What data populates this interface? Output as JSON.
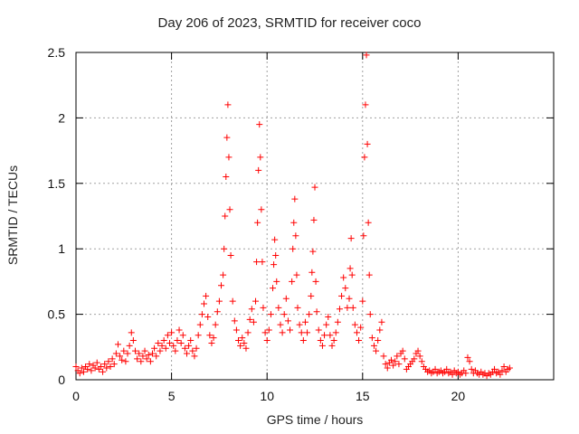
{
  "chart_data": {
    "type": "scatter",
    "title": "Day 206 of 2023, SRMTID for receiver coco",
    "xlabel": "GPS time / hours",
    "ylabel": "SRMTID / TECUs",
    "xlim": [
      0,
      25
    ],
    "ylim": [
      0,
      2.5
    ],
    "xticks": [
      0,
      5,
      10,
      15,
      20
    ],
    "yticks": [
      0,
      0.5,
      1,
      1.5,
      2,
      2.5
    ],
    "xtick_labels": [
      "0",
      "5",
      "10",
      "15",
      "20"
    ],
    "ytick_labels": [
      "0",
      "0.5",
      "1",
      "1.5",
      "2",
      "2.5"
    ],
    "grid": true,
    "marker": "+",
    "color": "#ff0000",
    "series": [
      {
        "name": "coco",
        "points": [
          [
            0.0,
            0.1
          ],
          [
            0.1,
            0.07
          ],
          [
            0.2,
            0.05
          ],
          [
            0.3,
            0.09
          ],
          [
            0.4,
            0.06
          ],
          [
            0.5,
            0.1
          ],
          [
            0.6,
            0.08
          ],
          [
            0.7,
            0.12
          ],
          [
            0.8,
            0.07
          ],
          [
            0.9,
            0.11
          ],
          [
            1.0,
            0.09
          ],
          [
            1.1,
            0.13
          ],
          [
            1.2,
            0.08
          ],
          [
            1.3,
            0.1
          ],
          [
            1.4,
            0.06
          ],
          [
            1.5,
            0.12
          ],
          [
            1.6,
            0.09
          ],
          [
            1.7,
            0.14
          ],
          [
            1.8,
            0.1
          ],
          [
            1.9,
            0.16
          ],
          [
            2.0,
            0.12
          ],
          [
            2.1,
            0.2
          ],
          [
            2.2,
            0.27
          ],
          [
            2.3,
            0.18
          ],
          [
            2.4,
            0.15
          ],
          [
            2.5,
            0.22
          ],
          [
            2.6,
            0.14
          ],
          [
            2.7,
            0.2
          ],
          [
            2.8,
            0.26
          ],
          [
            2.9,
            0.36
          ],
          [
            3.0,
            0.3
          ],
          [
            3.1,
            0.22
          ],
          [
            3.2,
            0.16
          ],
          [
            3.3,
            0.2
          ],
          [
            3.4,
            0.14
          ],
          [
            3.5,
            0.18
          ],
          [
            3.6,
            0.22
          ],
          [
            3.7,
            0.16
          ],
          [
            3.8,
            0.19
          ],
          [
            3.9,
            0.14
          ],
          [
            4.0,
            0.2
          ],
          [
            4.1,
            0.24
          ],
          [
            4.2,
            0.18
          ],
          [
            4.3,
            0.28
          ],
          [
            4.4,
            0.22
          ],
          [
            4.5,
            0.26
          ],
          [
            4.6,
            0.3
          ],
          [
            4.7,
            0.24
          ],
          [
            4.8,
            0.34
          ],
          [
            4.9,
            0.28
          ],
          [
            5.0,
            0.36
          ],
          [
            5.1,
            0.26
          ],
          [
            5.2,
            0.22
          ],
          [
            5.3,
            0.3
          ],
          [
            5.4,
            0.38
          ],
          [
            5.5,
            0.28
          ],
          [
            5.6,
            0.34
          ],
          [
            5.7,
            0.24
          ],
          [
            5.8,
            0.2
          ],
          [
            5.9,
            0.26
          ],
          [
            6.0,
            0.3
          ],
          [
            6.1,
            0.22
          ],
          [
            6.2,
            0.18
          ],
          [
            6.3,
            0.24
          ],
          [
            6.4,
            0.34
          ],
          [
            6.5,
            0.42
          ],
          [
            6.6,
            0.5
          ],
          [
            6.7,
            0.58
          ],
          [
            6.8,
            0.64
          ],
          [
            6.9,
            0.48
          ],
          [
            7.0,
            0.34
          ],
          [
            7.1,
            0.28
          ],
          [
            7.2,
            0.32
          ],
          [
            7.3,
            0.42
          ],
          [
            7.4,
            0.52
          ],
          [
            7.5,
            0.6
          ],
          [
            7.6,
            0.72
          ],
          [
            7.7,
            0.8
          ],
          [
            7.75,
            1.0
          ],
          [
            7.8,
            1.25
          ],
          [
            7.85,
            1.55
          ],
          [
            7.9,
            1.85
          ],
          [
            7.95,
            2.1
          ],
          [
            8.0,
            1.7
          ],
          [
            8.05,
            1.3
          ],
          [
            8.1,
            0.95
          ],
          [
            8.2,
            0.6
          ],
          [
            8.3,
            0.45
          ],
          [
            8.4,
            0.38
          ],
          [
            8.5,
            0.3
          ],
          [
            8.6,
            0.26
          ],
          [
            8.7,
            0.32
          ],
          [
            8.8,
            0.28
          ],
          [
            8.9,
            0.24
          ],
          [
            9.0,
            0.36
          ],
          [
            9.1,
            0.46
          ],
          [
            9.2,
            0.54
          ],
          [
            9.3,
            0.44
          ],
          [
            9.4,
            0.6
          ],
          [
            9.45,
            0.9
          ],
          [
            9.5,
            1.2
          ],
          [
            9.55,
            1.6
          ],
          [
            9.6,
            1.95
          ],
          [
            9.65,
            1.7
          ],
          [
            9.7,
            1.3
          ],
          [
            9.75,
            0.9
          ],
          [
            9.8,
            0.55
          ],
          [
            9.9,
            0.36
          ],
          [
            10.0,
            0.3
          ],
          [
            10.1,
            0.38
          ],
          [
            10.2,
            0.5
          ],
          [
            10.3,
            0.7
          ],
          [
            10.35,
            0.88
          ],
          [
            10.4,
            1.07
          ],
          [
            10.45,
            0.95
          ],
          [
            10.5,
            0.75
          ],
          [
            10.6,
            0.55
          ],
          [
            10.7,
            0.42
          ],
          [
            10.8,
            0.36
          ],
          [
            10.9,
            0.5
          ],
          [
            11.0,
            0.62
          ],
          [
            11.1,
            0.45
          ],
          [
            11.2,
            0.38
          ],
          [
            11.3,
            0.75
          ],
          [
            11.35,
            1.0
          ],
          [
            11.4,
            1.2
          ],
          [
            11.45,
            1.38
          ],
          [
            11.5,
            1.1
          ],
          [
            11.55,
            0.8
          ],
          [
            11.6,
            0.55
          ],
          [
            11.7,
            0.42
          ],
          [
            11.8,
            0.36
          ],
          [
            11.9,
            0.3
          ],
          [
            12.0,
            0.44
          ],
          [
            12.1,
            0.36
          ],
          [
            12.2,
            0.5
          ],
          [
            12.3,
            0.64
          ],
          [
            12.35,
            0.82
          ],
          [
            12.4,
            0.98
          ],
          [
            12.45,
            1.22
          ],
          [
            12.5,
            1.47
          ],
          [
            12.55,
            0.75
          ],
          [
            12.6,
            0.52
          ],
          [
            12.7,
            0.38
          ],
          [
            12.8,
            0.3
          ],
          [
            12.9,
            0.26
          ],
          [
            13.0,
            0.34
          ],
          [
            13.1,
            0.42
          ],
          [
            13.2,
            0.48
          ],
          [
            13.3,
            0.34
          ],
          [
            13.4,
            0.26
          ],
          [
            13.5,
            0.3
          ],
          [
            13.6,
            0.36
          ],
          [
            13.7,
            0.44
          ],
          [
            13.8,
            0.54
          ],
          [
            13.9,
            0.64
          ],
          [
            14.0,
            0.78
          ],
          [
            14.1,
            0.7
          ],
          [
            14.2,
            0.55
          ],
          [
            14.3,
            0.62
          ],
          [
            14.35,
            0.85
          ],
          [
            14.4,
            1.08
          ],
          [
            14.45,
            0.8
          ],
          [
            14.5,
            0.55
          ],
          [
            14.6,
            0.42
          ],
          [
            14.7,
            0.36
          ],
          [
            14.8,
            0.3
          ],
          [
            14.9,
            0.4
          ],
          [
            15.0,
            0.6
          ],
          [
            15.05,
            1.1
          ],
          [
            15.1,
            1.7
          ],
          [
            15.15,
            2.1
          ],
          [
            15.2,
            2.48
          ],
          [
            15.25,
            1.8
          ],
          [
            15.3,
            1.2
          ],
          [
            15.35,
            0.8
          ],
          [
            15.4,
            0.5
          ],
          [
            15.5,
            0.32
          ],
          [
            15.6,
            0.26
          ],
          [
            15.7,
            0.22
          ],
          [
            15.8,
            0.3
          ],
          [
            15.9,
            0.38
          ],
          [
            16.0,
            0.44
          ],
          [
            16.1,
            0.18
          ],
          [
            16.2,
            0.12
          ],
          [
            16.3,
            0.09
          ],
          [
            16.4,
            0.13
          ],
          [
            16.5,
            0.15
          ],
          [
            16.6,
            0.11
          ],
          [
            16.7,
            0.14
          ],
          [
            16.8,
            0.18
          ],
          [
            16.9,
            0.12
          ],
          [
            17.0,
            0.2
          ],
          [
            17.1,
            0.22
          ],
          [
            17.2,
            0.16
          ],
          [
            17.3,
            0.08
          ],
          [
            17.4,
            0.1
          ],
          [
            17.5,
            0.12
          ],
          [
            17.6,
            0.14
          ],
          [
            17.7,
            0.16
          ],
          [
            17.8,
            0.2
          ],
          [
            17.9,
            0.22
          ],
          [
            18.0,
            0.18
          ],
          [
            18.1,
            0.14
          ],
          [
            18.2,
            0.1
          ],
          [
            18.3,
            0.08
          ],
          [
            18.4,
            0.06
          ],
          [
            18.5,
            0.07
          ],
          [
            18.6,
            0.05
          ],
          [
            18.7,
            0.06
          ],
          [
            18.8,
            0.08
          ],
          [
            18.9,
            0.05
          ],
          [
            19.0,
            0.06
          ],
          [
            19.1,
            0.07
          ],
          [
            19.2,
            0.05
          ],
          [
            19.3,
            0.06
          ],
          [
            19.4,
            0.08
          ],
          [
            19.5,
            0.05
          ],
          [
            19.6,
            0.06
          ],
          [
            19.7,
            0.04
          ],
          [
            19.8,
            0.07
          ],
          [
            19.9,
            0.05
          ],
          [
            20.0,
            0.06
          ],
          [
            20.1,
            0.04
          ],
          [
            20.2,
            0.05
          ],
          [
            20.3,
            0.07
          ],
          [
            20.4,
            0.05
          ],
          [
            20.5,
            0.17
          ],
          [
            20.6,
            0.14
          ],
          [
            20.7,
            0.08
          ],
          [
            20.8,
            0.05
          ],
          [
            20.9,
            0.07
          ],
          [
            21.0,
            0.05
          ],
          [
            21.1,
            0.04
          ],
          [
            21.2,
            0.06
          ],
          [
            21.3,
            0.04
          ],
          [
            21.4,
            0.05
          ],
          [
            21.5,
            0.03
          ],
          [
            21.6,
            0.05
          ],
          [
            21.7,
            0.04
          ],
          [
            21.8,
            0.06
          ],
          [
            21.9,
            0.08
          ],
          [
            22.0,
            0.05
          ],
          [
            22.1,
            0.06
          ],
          [
            22.2,
            0.04
          ],
          [
            22.3,
            0.07
          ],
          [
            22.4,
            0.1
          ],
          [
            22.5,
            0.06
          ],
          [
            22.6,
            0.08
          ],
          [
            22.7,
            0.09
          ]
        ]
      }
    ]
  }
}
